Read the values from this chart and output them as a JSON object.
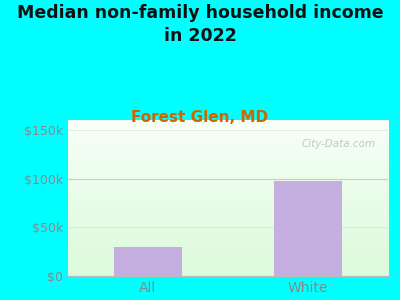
{
  "title": "Median non-family household income\nin 2022",
  "subtitle": "Forest Glen, MD",
  "categories": [
    "All",
    "White"
  ],
  "values": [
    30000,
    97000
  ],
  "bar_color": "#c5aee0",
  "ylim": [
    0,
    160000
  ],
  "yticks": [
    0,
    50000,
    100000,
    150000
  ],
  "ytick_labels": [
    "$0",
    "$50k",
    "$100k",
    "$150k"
  ],
  "bg_color": "#00FFFF",
  "title_fontsize": 12.5,
  "title_color": "#111111",
  "subtitle_fontsize": 11,
  "subtitle_color": "#cc6600",
  "tick_color": "#888888",
  "tick_fontsize": 9,
  "xtick_fontsize": 10,
  "watermark": "City-Data.com",
  "ref_line_y": 100000,
  "ref_line_color": "#ffb3b3",
  "bar_width": 0.42,
  "xlim": [
    -0.5,
    1.5
  ]
}
